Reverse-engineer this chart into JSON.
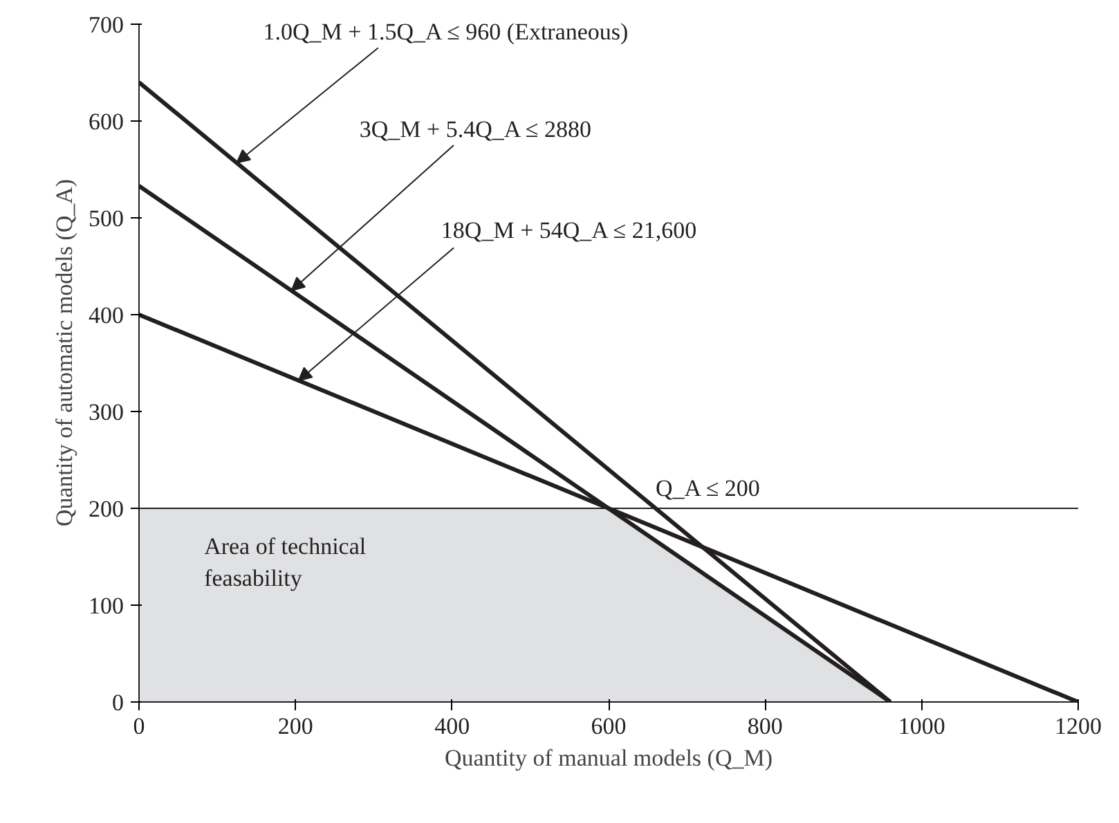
{
  "chart_data": {
    "type": "line",
    "xlabel": "Quantity of manual models (Q_M)",
    "ylabel": "Quantity of automatic models (Q_A)",
    "xlim": [
      0,
      1200
    ],
    "ylim": [
      0,
      700
    ],
    "xticks": [
      0,
      200,
      400,
      600,
      800,
      1000,
      1200
    ],
    "yticks": [
      0,
      100,
      200,
      300,
      400,
      500,
      600,
      700
    ],
    "grid": false,
    "series": [
      {
        "type": "area",
        "color": "#e0e1e3",
        "x": [
          0,
          600,
          960
        ],
        "values": [
          200,
          200,
          0
        ]
      },
      {
        "color": "#231f20",
        "x": [
          0,
          960
        ],
        "values": [
          640,
          0
        ]
      },
      {
        "color": "#231f20",
        "x": [
          0,
          960
        ],
        "values": [
          533,
          0
        ]
      },
      {
        "color": "#231f20",
        "x": [
          0,
          1200
        ],
        "values": [
          400,
          0
        ]
      }
    ],
    "ref_lines": [
      {
        "axis": "y",
        "value": 200,
        "label": "Q_A ≤ 200",
        "color": "#231f20"
      }
    ],
    "annotations": [
      {
        "text": "1.0Q_M + 1.5Q_A ≤ 960 (Extraneous)",
        "x": 125,
        "y": 557
      },
      {
        "text": "3Q_M + 5.4Q_A ≤ 2880",
        "x": 195,
        "y": 425
      },
      {
        "text": "18Q_M + 54Q_A ≤ 21,600",
        "x": 204,
        "y": 332
      },
      "Area of technical\nfeasability"
    ]
  }
}
